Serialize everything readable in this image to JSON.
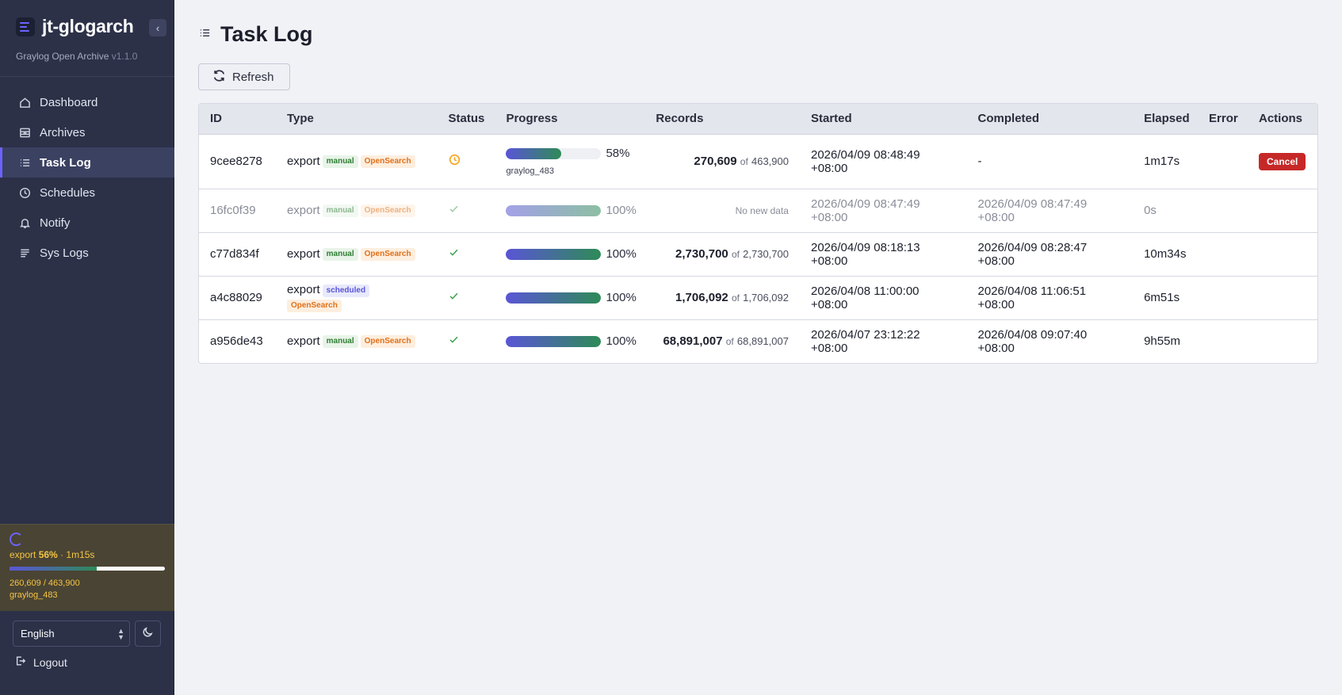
{
  "sidebar": {
    "brand": "jt-glogarch",
    "collapse_icon": "‹",
    "subtitle": "Graylog Open Archive",
    "version": "v1.1.0",
    "nav": [
      {
        "label": "Dashboard",
        "icon": "home-icon"
      },
      {
        "label": "Archives",
        "icon": "archive-icon"
      },
      {
        "label": "Task Log",
        "icon": "list-icon",
        "active": true
      },
      {
        "label": "Schedules",
        "icon": "clock-icon"
      },
      {
        "label": "Notify",
        "icon": "bell-icon"
      },
      {
        "label": "Sys Logs",
        "icon": "lines-icon"
      }
    ],
    "job": {
      "type": "export",
      "percent": "56%",
      "elapsed": "· 1m15s",
      "progress_fraction": 0.56,
      "counts": "260,609 / 463,900",
      "index": "graylog_483"
    },
    "language": "English",
    "logout": "Logout"
  },
  "page": {
    "title": "Task Log",
    "refresh_label": "Refresh"
  },
  "table": {
    "headers": [
      "ID",
      "Type",
      "Status",
      "Progress",
      "Records",
      "Started",
      "Completed",
      "Elapsed",
      "Error",
      "Actions"
    ],
    "rows": [
      {
        "id": "9cee8278",
        "type": "export",
        "tags": [
          "manual",
          "OpenSearch"
        ],
        "status": "running",
        "progress_fraction": 0.58,
        "progress_label": "58%",
        "index": "graylog_483",
        "records": "270,609",
        "of": "of",
        "total": "463,900",
        "started_date": "2026/04/09 08:48:49",
        "started_tz": "+08:00",
        "completed": "-",
        "completed_tz": "",
        "elapsed": "1m17s",
        "error": "",
        "action": "Cancel"
      },
      {
        "id": "16fc0f39",
        "type": "export",
        "tags": [
          "manual",
          "OpenSearch"
        ],
        "status": "done",
        "progress_fraction": 1.0,
        "progress_label": "100%",
        "records_note": "No new data",
        "started_date": "2026/04/09 08:47:49",
        "started_tz": "+08:00",
        "completed": "2026/04/09 08:47:49",
        "completed_tz": "+08:00",
        "elapsed": "0s",
        "error": "",
        "muted": true
      },
      {
        "id": "c77d834f",
        "type": "export",
        "tags": [
          "manual",
          "OpenSearch"
        ],
        "status": "done",
        "progress_fraction": 1.0,
        "progress_label": "100%",
        "records": "2,730,700",
        "of": "of",
        "total": "2,730,700",
        "started_date": "2026/04/09 08:18:13",
        "started_tz": "+08:00",
        "completed": "2026/04/09 08:28:47",
        "completed_tz": "+08:00",
        "elapsed": "10m34s",
        "error": ""
      },
      {
        "id": "a4c88029",
        "type": "export",
        "tags": [
          "scheduled",
          "OpenSearch"
        ],
        "status": "done",
        "progress_fraction": 1.0,
        "progress_label": "100%",
        "records": "1,706,092",
        "of": "of",
        "total": "1,706,092",
        "started_date": "2026/04/08 11:00:00",
        "started_tz": "+08:00",
        "completed": "2026/04/08 11:06:51",
        "completed_tz": "+08:00",
        "elapsed": "6m51s",
        "error": ""
      },
      {
        "id": "a956de43",
        "type": "export",
        "tags": [
          "manual",
          "OpenSearch"
        ],
        "status": "done",
        "progress_fraction": 1.0,
        "progress_label": "100%",
        "records": "68,891,007",
        "of": "of",
        "total": "68,891,007",
        "started_date": "2026/04/07 23:12:22",
        "started_tz": "+08:00",
        "completed": "2026/04/08 09:07:40",
        "completed_tz": "+08:00",
        "elapsed": "9h55m",
        "error": ""
      }
    ]
  },
  "colors": {
    "sidebar_bg": "#2c3148",
    "accent": "#6c63ff",
    "progress_start": "#5a55d6",
    "progress_end": "#2e8b57",
    "cancel": "#c62828",
    "running": "#f5a31a",
    "success": "#3a9d4c",
    "job_text": "#f5c542"
  }
}
